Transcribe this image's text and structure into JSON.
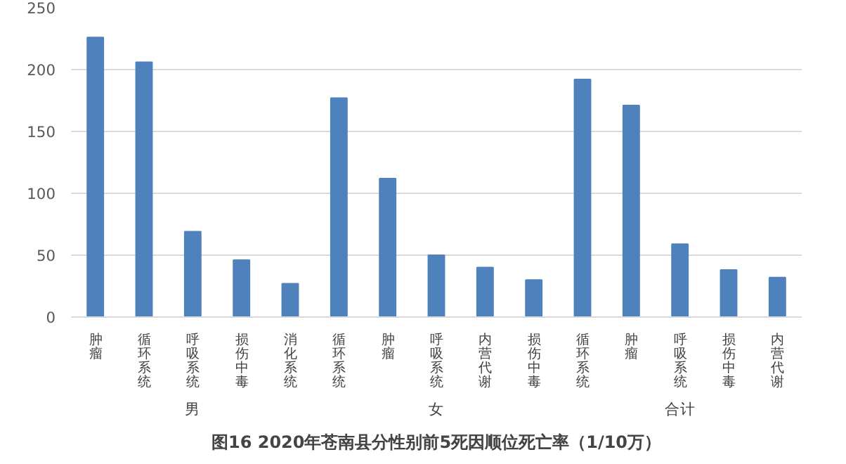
{
  "chart_data": {
    "type": "bar",
    "title": "图16 2020年苍南县分性别前5死因顺位死亡率（1/10万）",
    "categories": [
      "肿瘤",
      "循环系统",
      "呼吸系统",
      "损伤中毒",
      "消化系统",
      "循环系统",
      "肿瘤",
      "呼吸系统",
      "内营代谢",
      "损伤中毒",
      "循环系统",
      "肿瘤",
      "呼吸系统",
      "损伤中毒",
      "内营代谢"
    ],
    "values": [
      226,
      206,
      69,
      46,
      27,
      177,
      112,
      50,
      40,
      30,
      192,
      171,
      59,
      38,
      32
    ],
    "color": "#4f81bd",
    "ylim": [
      0,
      250
    ],
    "yticks": [
      0,
      50,
      100,
      150,
      200,
      250
    ],
    "grid": "y",
    "annotations": [
      "男",
      "女",
      "合计"
    ]
  }
}
